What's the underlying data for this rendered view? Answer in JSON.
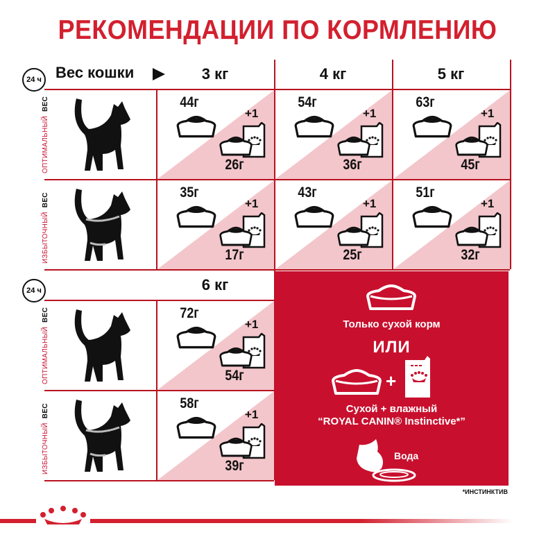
{
  "title": "РЕКОМЕНДАЦИИ ПО КОРМЛЕНИЮ",
  "header": {
    "weight_label": "Вес кошки",
    "arrow_icon": "play-triangle-icon",
    "clock_label": "24 ч"
  },
  "row_labels": {
    "optimal": {
      "main": "ОПТИМАЛЬНЫЙ",
      "suffix": "ВЕС"
    },
    "overweight": {
      "main": "ИЗБЫТОЧНЫЙ",
      "suffix": "ВЕС"
    }
  },
  "columns": [
    "3 кг",
    "4 кг",
    "5 кг",
    "6 кг"
  ],
  "plus_label": "+1",
  "table": {
    "optimal": [
      {
        "dry": "44г",
        "wet": "26г"
      },
      {
        "dry": "54г",
        "wet": "36г"
      },
      {
        "dry": "63г",
        "wet": "45г"
      },
      {
        "dry": "72г",
        "wet": "54г"
      }
    ],
    "overweight": [
      {
        "dry": "35г",
        "wet": "17г"
      },
      {
        "dry": "43г",
        "wet": "25г"
      },
      {
        "dry": "51г",
        "wet": "32г"
      },
      {
        "dry": "58г",
        "wet": "39г"
      }
    ]
  },
  "legend": {
    "dry_only": "Только сухой корм",
    "or": "ИЛИ",
    "plus": "+",
    "mixed_line1": "Сухой + влажный",
    "mixed_line2": "“ROYAL CANIN® Instinctive*”",
    "water": "Вода"
  },
  "footnote": "*ИНСТИНКТИВ",
  "colors": {
    "brand_red": "#c8102e",
    "pink": "#f3c6cb",
    "grid": "#b8121f"
  }
}
